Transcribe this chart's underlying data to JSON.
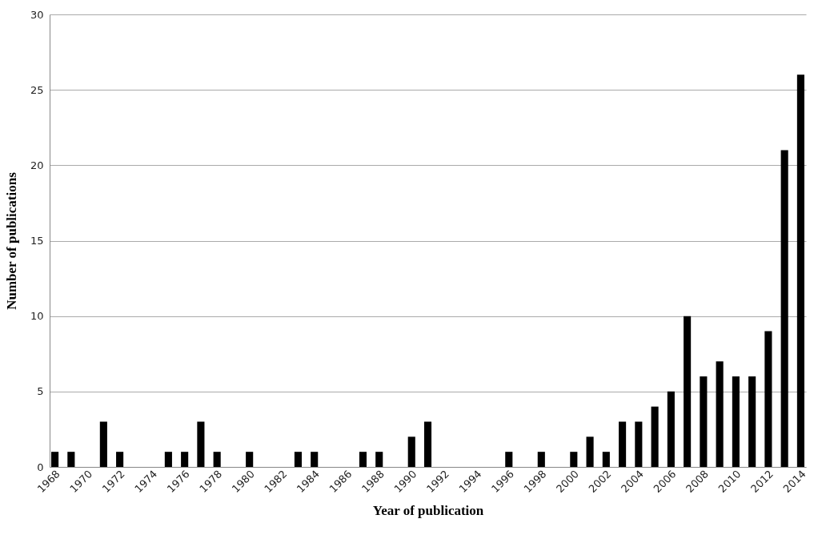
{
  "chart_data": {
    "type": "bar",
    "xlabel": "Year of publication",
    "ylabel": "Number of publications",
    "categories": [
      "1968",
      null,
      "1970",
      null,
      "1972",
      null,
      "1974",
      null,
      "1976",
      null,
      "1978",
      null,
      "1980",
      null,
      "1982",
      null,
      "1984",
      null,
      "1986",
      null,
      "1988",
      null,
      "1990",
      null,
      "1992",
      null,
      "1994",
      null,
      "1996",
      null,
      "1998",
      null,
      "2000",
      null,
      "2002",
      null,
      "2004",
      null,
      "2006",
      null,
      "2008",
      null,
      "2010",
      null,
      "2012",
      null,
      "2014"
    ],
    "values": [
      1,
      1,
      0,
      3,
      1,
      0,
      0,
      1,
      1,
      3,
      1,
      0,
      1,
      0,
      0,
      1,
      1,
      0,
      0,
      1,
      1,
      0,
      2,
      3,
      0,
      0,
      0,
      0,
      1,
      0,
      1,
      0,
      1,
      2,
      1,
      3,
      3,
      4,
      5,
      10,
      6,
      7,
      6,
      6,
      9,
      21,
      26
    ],
    "color": "#000000",
    "ylim": [
      0,
      30
    ],
    "yticks": [
      0,
      5,
      10,
      15,
      20,
      25,
      30
    ],
    "grid": "y"
  }
}
